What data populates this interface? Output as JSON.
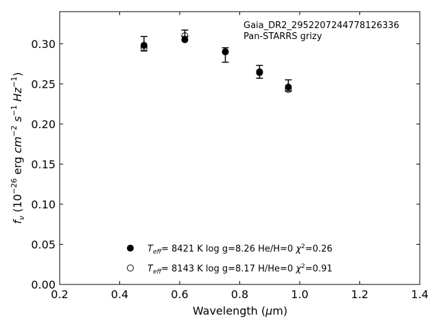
{
  "chart_data": {
    "type": "scatter",
    "annotation": [
      "Gaia_DR2_2952207244778126336",
      "Pan-STARRS grizy"
    ],
    "xlabel": "Wavelength (μm)",
    "ylabel": "f_ν (10^−26 erg cm^−2 s^−1 Hz^−1)",
    "xlim": [
      0.2,
      1.4
    ],
    "ylim": [
      0.0,
      0.34
    ],
    "xticks": [
      "0.2",
      "0.4",
      "0.6",
      "0.8",
      "1.0",
      "1.2",
      "1.4"
    ],
    "yticks": [
      "0.00",
      "0.05",
      "0.10",
      "0.15",
      "0.20",
      "0.25",
      "0.30"
    ],
    "grid": false,
    "legend_position": "bottom-center",
    "observed": {
      "x": [
        0.481,
        0.617,
        0.752,
        0.866,
        0.962
      ],
      "y": [
        0.3,
        0.313,
        0.286,
        0.265,
        0.248
      ],
      "yerr": [
        0.009,
        0.004,
        0.009,
        0.008,
        0.007
      ]
    },
    "series": [
      {
        "marker": "filled-circle",
        "x": [
          0.481,
          0.617,
          0.752,
          0.866,
          0.962
        ],
        "y": [
          0.298,
          0.305,
          0.29,
          0.265,
          0.246
        ],
        "legend": {
          "teff_value": "8421 K",
          "logg": "log g=8.26",
          "composition": "He/H=0",
          "chi2": "=0.26"
        }
      },
      {
        "marker": "open-circle",
        "x": [
          0.481,
          0.617,
          0.752,
          0.866,
          0.962
        ],
        "y": [
          0.295,
          0.31,
          0.29,
          0.264,
          0.243
        ],
        "legend": {
          "teff_value": "8143 K",
          "logg": "log g=8.17",
          "composition": "H/He=0",
          "chi2": "=0.91"
        }
      }
    ]
  }
}
